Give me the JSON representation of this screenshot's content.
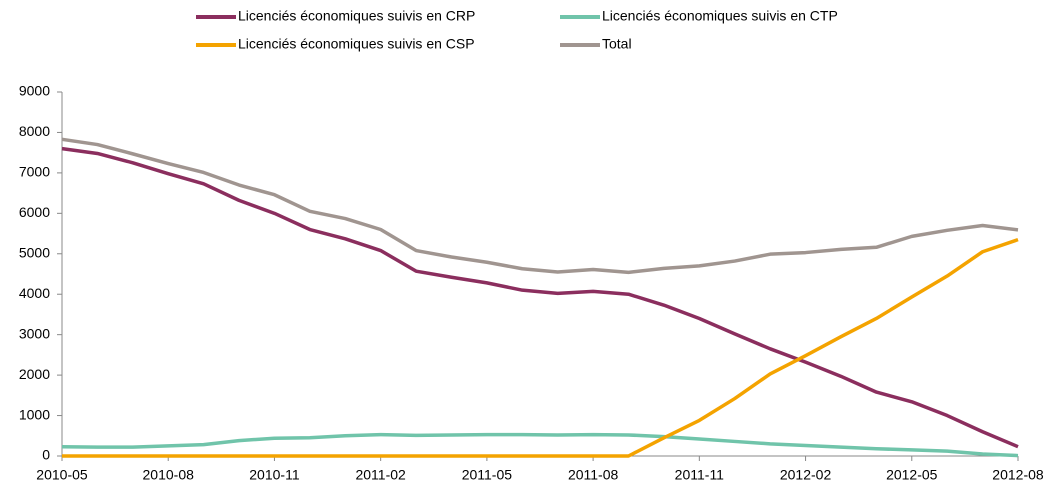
{
  "chart_data": {
    "type": "line",
    "categories": [
      "2010-05",
      null,
      null,
      "2010-08",
      null,
      null,
      "2010-11",
      null,
      null,
      "2011-02",
      null,
      null,
      "2011-05",
      null,
      null,
      "2011-08",
      null,
      null,
      "2011-11",
      null,
      null,
      "2012-02",
      null,
      null,
      "2012-05",
      null,
      null,
      "2012-08"
    ],
    "series": [
      {
        "name": "Licenciés économiques suivis en CRP",
        "color": "#8b2e5e",
        "values": [
          7600,
          7480,
          7250,
          6980,
          6730,
          6320,
          6000,
          5600,
          5370,
          5080,
          4570,
          4420,
          4280,
          4100,
          4020,
          4070,
          4000,
          3730,
          3400,
          3020,
          2650,
          2320,
          1970,
          1580,
          1340,
          1000,
          600,
          230
        ]
      },
      {
        "name": "Licenciés économiques suivis en CTP",
        "color": "#70c4aa",
        "values": [
          230,
          220,
          220,
          250,
          280,
          380,
          440,
          450,
          500,
          530,
          510,
          520,
          530,
          530,
          520,
          530,
          520,
          480,
          420,
          360,
          300,
          260,
          220,
          180,
          150,
          120,
          50,
          10
        ]
      },
      {
        "name": "Licenciés économiques suivis en CSP",
        "color": "#f4a300",
        "values": [
          0,
          0,
          0,
          0,
          0,
          0,
          0,
          0,
          0,
          0,
          0,
          0,
          0,
          0,
          0,
          0,
          0,
          450,
          880,
          1420,
          2030,
          2480,
          2950,
          3400,
          3930,
          4450,
          5050,
          5350
        ]
      },
      {
        "name": "Total",
        "color": "#a09590",
        "values": [
          7830,
          7700,
          7470,
          7230,
          7010,
          6700,
          6460,
          6050,
          5870,
          5600,
          5080,
          4920,
          4790,
          4630,
          4550,
          4610,
          4540,
          4640,
          4700,
          4820,
          4990,
          5030,
          5110,
          5160,
          5430,
          5580,
          5700,
          5590
        ]
      }
    ],
    "ylim": [
      0,
      9000
    ],
    "yticks": [
      0,
      1000,
      2000,
      3000,
      4000,
      5000,
      6000,
      7000,
      8000,
      9000
    ],
    "legend": "top",
    "grid": false
  }
}
